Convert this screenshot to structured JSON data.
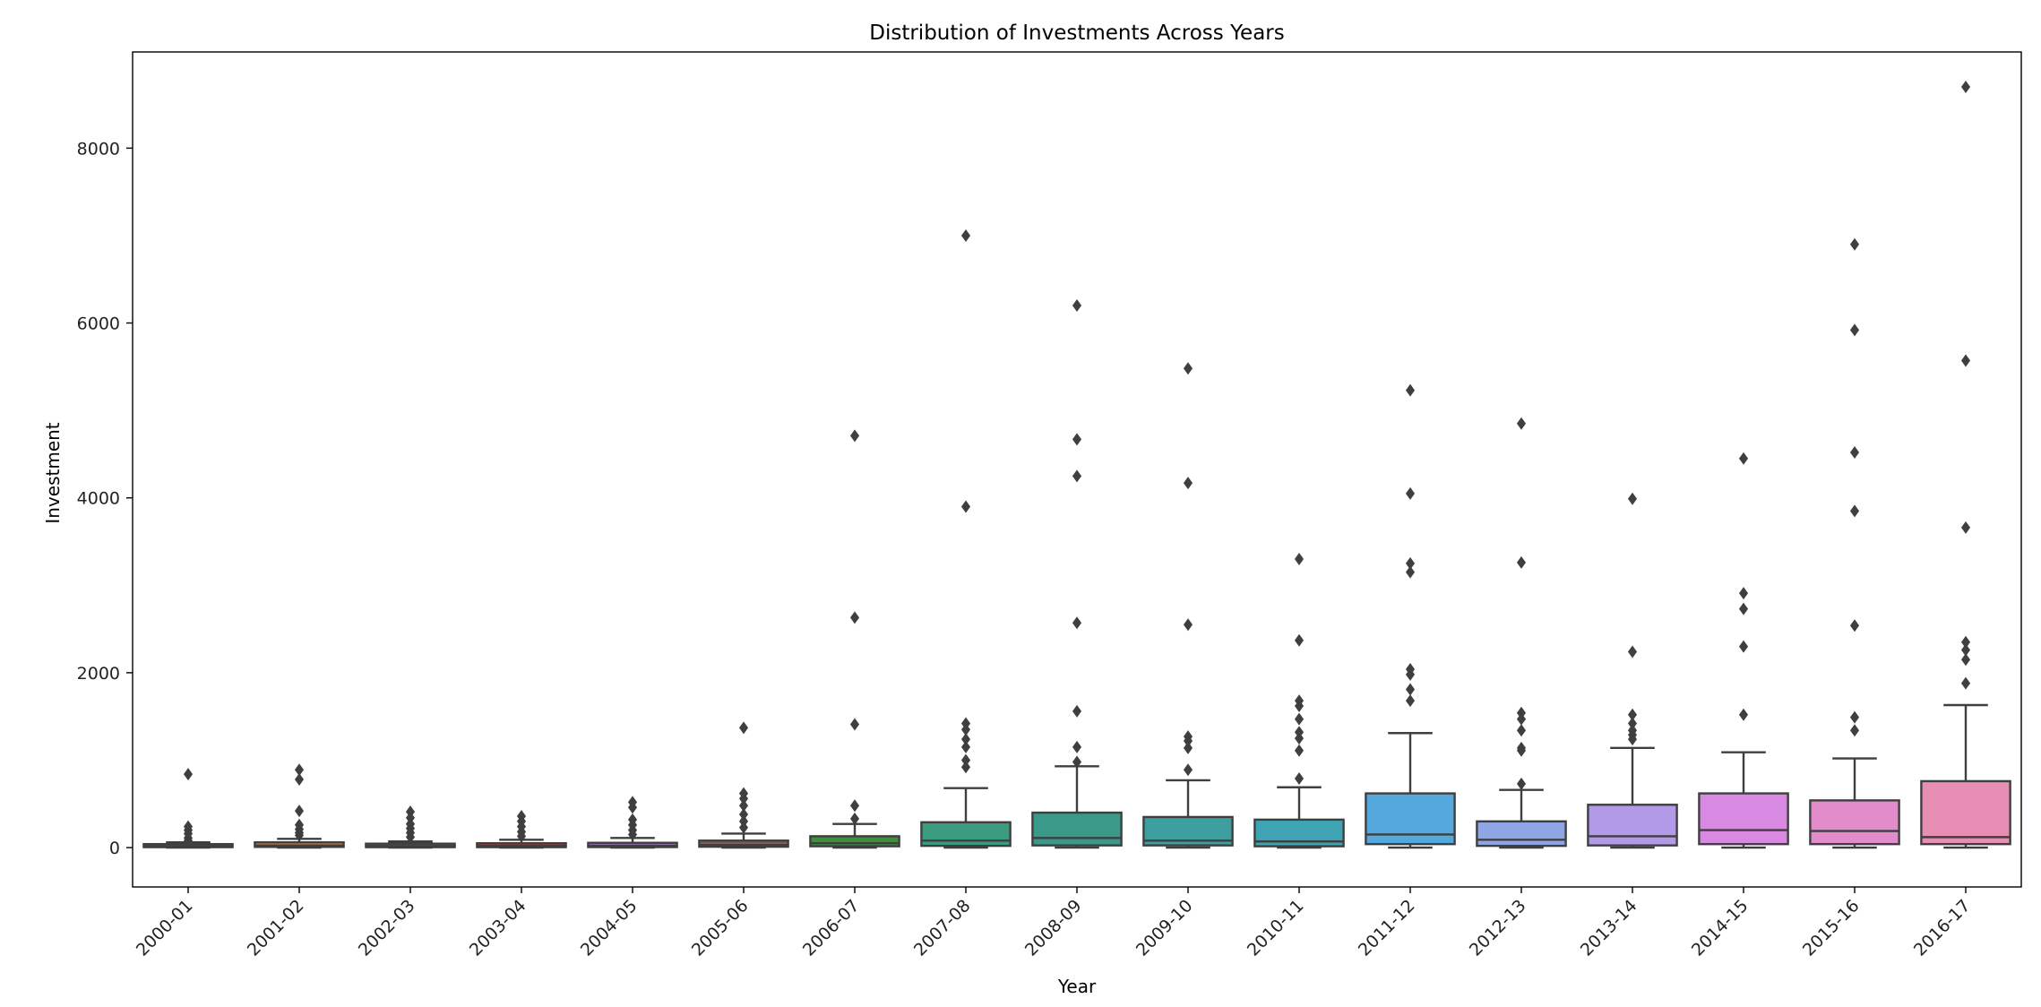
{
  "chart_data": {
    "type": "box",
    "title": "Distribution of Investments Across Years",
    "xlabel": "Year",
    "ylabel": "Investment",
    "ylim": [
      -450,
      9100
    ],
    "yticks": [
      0,
      2000,
      4000,
      6000,
      8000
    ],
    "grid": false,
    "legend": "none",
    "categories": [
      "2000-01",
      "2001-02",
      "2002-03",
      "2003-04",
      "2004-05",
      "2005-06",
      "2006-07",
      "2007-08",
      "2008-09",
      "2009-10",
      "2010-11",
      "2011-12",
      "2012-13",
      "2013-14",
      "2014-15",
      "2015-16",
      "2016-17"
    ],
    "colors": [
      "#3274a1",
      "#e1812c",
      "#3a923a",
      "#c03d3e",
      "#9372b2",
      "#845b53",
      "#3a923a",
      "#3a9b7f",
      "#3a9a8a",
      "#3d9fa0",
      "#3ea3b3",
      "#55a8dc",
      "#8fa5e5",
      "#b39ae8",
      "#d88ae2",
      "#e38ccc",
      "#e88eb5"
    ],
    "boxes": [
      {
        "whislo": 0,
        "q1": 5,
        "med": 15,
        "q3": 40,
        "whishi": 60,
        "fliers": [
          840,
          240,
          200,
          160,
          110,
          80
        ]
      },
      {
        "whislo": 0,
        "q1": 8,
        "med": 25,
        "q3": 60,
        "whishi": 100,
        "fliers": [
          890,
          780,
          420,
          260,
          210,
          170,
          140
        ]
      },
      {
        "whislo": 0,
        "q1": 5,
        "med": 18,
        "q3": 45,
        "whishi": 70,
        "fliers": [
          410,
          340,
          270,
          220,
          170,
          120
        ]
      },
      {
        "whislo": 0,
        "q1": 5,
        "med": 20,
        "q3": 50,
        "whishi": 90,
        "fliers": [
          360,
          300,
          240,
          180,
          130
        ]
      },
      {
        "whislo": 0,
        "q1": 6,
        "med": 20,
        "q3": 55,
        "whishi": 110,
        "fliers": [
          520,
          460,
          320,
          260,
          200,
          150
        ]
      },
      {
        "whislo": 0,
        "q1": 10,
        "med": 30,
        "q3": 80,
        "whishi": 160,
        "fliers": [
          1370,
          620,
          560,
          480,
          380,
          300,
          230
        ]
      },
      {
        "whislo": 0,
        "q1": 15,
        "med": 50,
        "q3": 130,
        "whishi": 270,
        "fliers": [
          4710,
          2630,
          1410,
          480,
          330
        ]
      },
      {
        "whislo": 0,
        "q1": 20,
        "med": 80,
        "q3": 290,
        "whishi": 680,
        "fliers": [
          7000,
          3900,
          1420,
          1350,
          1240,
          1150,
          1000,
          920
        ]
      },
      {
        "whislo": 0,
        "q1": 25,
        "med": 110,
        "q3": 400,
        "whishi": 930,
        "fliers": [
          6200,
          4670,
          4250,
          2570,
          1560,
          1150,
          980
        ]
      },
      {
        "whislo": 0,
        "q1": 25,
        "med": 80,
        "q3": 350,
        "whishi": 770,
        "fliers": [
          5480,
          4170,
          2550,
          1270,
          1220,
          1140,
          890
        ]
      },
      {
        "whislo": 0,
        "q1": 15,
        "med": 70,
        "q3": 320,
        "whishi": 690,
        "fliers": [
          3300,
          2370,
          1680,
          1620,
          1470,
          1320,
          1250,
          1110,
          790
        ]
      },
      {
        "whislo": 0,
        "q1": 40,
        "med": 150,
        "q3": 620,
        "whishi": 1310,
        "fliers": [
          5230,
          4050,
          3250,
          3150,
          2040,
          1980,
          1810,
          1680
        ]
      },
      {
        "whislo": 0,
        "q1": 20,
        "med": 90,
        "q3": 300,
        "whishi": 660,
        "fliers": [
          4850,
          3260,
          1540,
          1470,
          1340,
          1140,
          1110,
          730
        ]
      },
      {
        "whislo": 0,
        "q1": 25,
        "med": 130,
        "q3": 490,
        "whishi": 1140,
        "fliers": [
          3990,
          2240,
          1520,
          1420,
          1340,
          1290,
          1240
        ]
      },
      {
        "whislo": 0,
        "q1": 40,
        "med": 200,
        "q3": 620,
        "whishi": 1090,
        "fliers": [
          4450,
          2910,
          2730,
          2300,
          1520
        ]
      },
      {
        "whislo": 0,
        "q1": 40,
        "med": 190,
        "q3": 540,
        "whishi": 1020,
        "fliers": [
          6900,
          5920,
          4520,
          3850,
          2540,
          1490,
          1340
        ]
      },
      {
        "whislo": 0,
        "q1": 40,
        "med": 120,
        "q3": 760,
        "whishi": 1630,
        "fliers": [
          8700,
          5570,
          3660,
          2350,
          2260,
          2150,
          1880
        ]
      }
    ]
  }
}
